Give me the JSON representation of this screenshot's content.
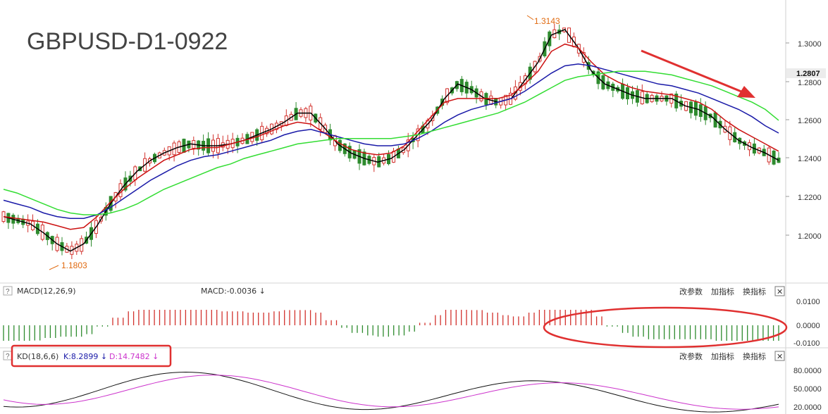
{
  "title": "GBPUSD-D1-0922",
  "main_axis": {
    "ticks": [
      "1.3000",
      "1.2800",
      "1.2600",
      "1.2400",
      "1.2200",
      "1.2000"
    ],
    "current_price": "1.2807"
  },
  "annotations": {
    "high": "1.3143",
    "low": "1.1803"
  },
  "macd_panel": {
    "help": "?",
    "label": "MACD(12,26,9)",
    "value_label": "MACD:-0.0036 ↓",
    "ticks": [
      "0.0100",
      "0.0000",
      "-0.0100"
    ]
  },
  "kd_panel": {
    "help": "?",
    "label": "KD(18,6,6)",
    "k_label": "K:8.2899 ↓",
    "d_label": "D:14.7482 ↓",
    "ticks": [
      "80.0000",
      "50.0000",
      "20.0000"
    ]
  },
  "buttons": {
    "params": "改参数",
    "add": "加指标",
    "change": "换指标",
    "close": "✕"
  },
  "colors": {
    "up": "#d2322d",
    "down": "#2e8b2e",
    "ma_black": "#000000",
    "ma_red": "#cc1111",
    "ma_blue": "#1a1aa8",
    "ma_green": "#33dd33",
    "k_line": "#111111",
    "d_line": "#cc33cc",
    "annotation": "#e06a10",
    "highlight": "#e03030"
  },
  "chart_data": {
    "type": "candlestick",
    "y_range": [
      1.175,
      1.3165
    ],
    "ma_series": [
      {
        "values": [
          1.205,
          1.203,
          1.201,
          1.196,
          1.19,
          1.186,
          1.19,
          1.2,
          1.212,
          1.222,
          1.23,
          1.236,
          1.24,
          1.243,
          1.245,
          1.244,
          1.244,
          1.245,
          1.247,
          1.25,
          1.253,
          1.257,
          1.262,
          1.262,
          1.254,
          1.245,
          1.24,
          1.237,
          1.235,
          1.237,
          1.242,
          1.25,
          1.258,
          1.27,
          1.278,
          1.275,
          1.27,
          1.268,
          1.27,
          1.28,
          1.29,
          1.305,
          1.308,
          1.298,
          1.285,
          1.278,
          1.275,
          1.272,
          1.27,
          1.27,
          1.27,
          1.266,
          1.264,
          1.26,
          1.253,
          1.247,
          1.243,
          1.24,
          1.236
        ]
      },
      {
        "values": [
          1.205,
          1.204,
          1.203,
          1.202,
          1.2,
          1.198,
          1.199,
          1.205,
          1.213,
          1.22,
          1.226,
          1.231,
          1.236,
          1.239,
          1.242,
          1.243,
          1.243,
          1.245,
          1.247,
          1.249,
          1.252,
          1.255,
          1.257,
          1.256,
          1.251,
          1.246,
          1.242,
          1.24,
          1.239,
          1.24,
          1.244,
          1.252,
          1.26,
          1.268,
          1.27,
          1.27,
          1.27,
          1.27,
          1.272,
          1.278,
          1.285,
          1.296,
          1.3,
          1.298,
          1.29,
          1.283,
          1.279,
          1.276,
          1.274,
          1.273,
          1.272,
          1.27,
          1.268,
          1.264,
          1.258,
          1.253,
          1.249,
          1.245,
          1.241
        ]
      },
      {
        "values": [
          1.214,
          1.212,
          1.21,
          1.207,
          1.205,
          1.204,
          1.204,
          1.206,
          1.21,
          1.215,
          1.22,
          1.225,
          1.229,
          1.233,
          1.236,
          1.238,
          1.239,
          1.241,
          1.243,
          1.245,
          1.247,
          1.25,
          1.252,
          1.253,
          1.251,
          1.249,
          1.247,
          1.245,
          1.244,
          1.244,
          1.245,
          1.248,
          1.252,
          1.257,
          1.261,
          1.264,
          1.266,
          1.268,
          1.27,
          1.274,
          1.279,
          1.284,
          1.288,
          1.289,
          1.288,
          1.286,
          1.284,
          1.282,
          1.28,
          1.278,
          1.277,
          1.275,
          1.273,
          1.27,
          1.267,
          1.264,
          1.26,
          1.255,
          1.251
        ]
      },
      {
        "values": [
          1.22,
          1.218,
          1.215,
          1.212,
          1.209,
          1.207,
          1.206,
          1.206,
          1.207,
          1.209,
          1.212,
          1.216,
          1.22,
          1.223,
          1.226,
          1.229,
          1.232,
          1.234,
          1.237,
          1.239,
          1.241,
          1.243,
          1.245,
          1.246,
          1.247,
          1.248,
          1.248,
          1.248,
          1.248,
          1.248,
          1.249,
          1.25,
          1.252,
          1.254,
          1.256,
          1.258,
          1.26,
          1.262,
          1.265,
          1.268,
          1.272,
          1.276,
          1.28,
          1.282,
          1.283,
          1.284,
          1.285,
          1.285,
          1.285,
          1.284,
          1.283,
          1.281,
          1.279,
          1.277,
          1.274,
          1.271,
          1.268,
          1.264,
          1.258
        ]
      }
    ]
  }
}
